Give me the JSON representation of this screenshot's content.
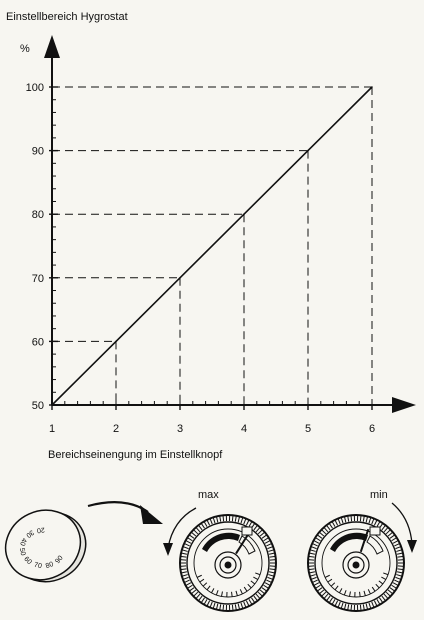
{
  "chart_data": {
    "type": "line",
    "title": "Einstellbereich Hygrostat",
    "ylabel": "%",
    "xlabel": "Bereichseinengung im Einstellknopf",
    "x_ticks": [
      "1",
      "2",
      "3",
      "4",
      "5",
      "6"
    ],
    "y_ticks": [
      "50",
      "60",
      "70",
      "80",
      "90",
      "100"
    ],
    "xlim": [
      1,
      6
    ],
    "ylim": [
      50,
      100
    ],
    "series": [
      {
        "x": [
          1,
          2,
          3,
          4,
          5,
          6
        ],
        "y": [
          50,
          60,
          70,
          80,
          90,
          100
        ]
      }
    ],
    "dashed_guides": true,
    "grid": false
  },
  "illustration": {
    "label_max": "max",
    "label_min": "min",
    "small_knob_numbers": [
      "90",
      "80",
      "70",
      "60",
      "50",
      "40",
      "30",
      "20"
    ]
  },
  "colors": {
    "ink": "#111111",
    "paper": "#f7f6f1"
  }
}
